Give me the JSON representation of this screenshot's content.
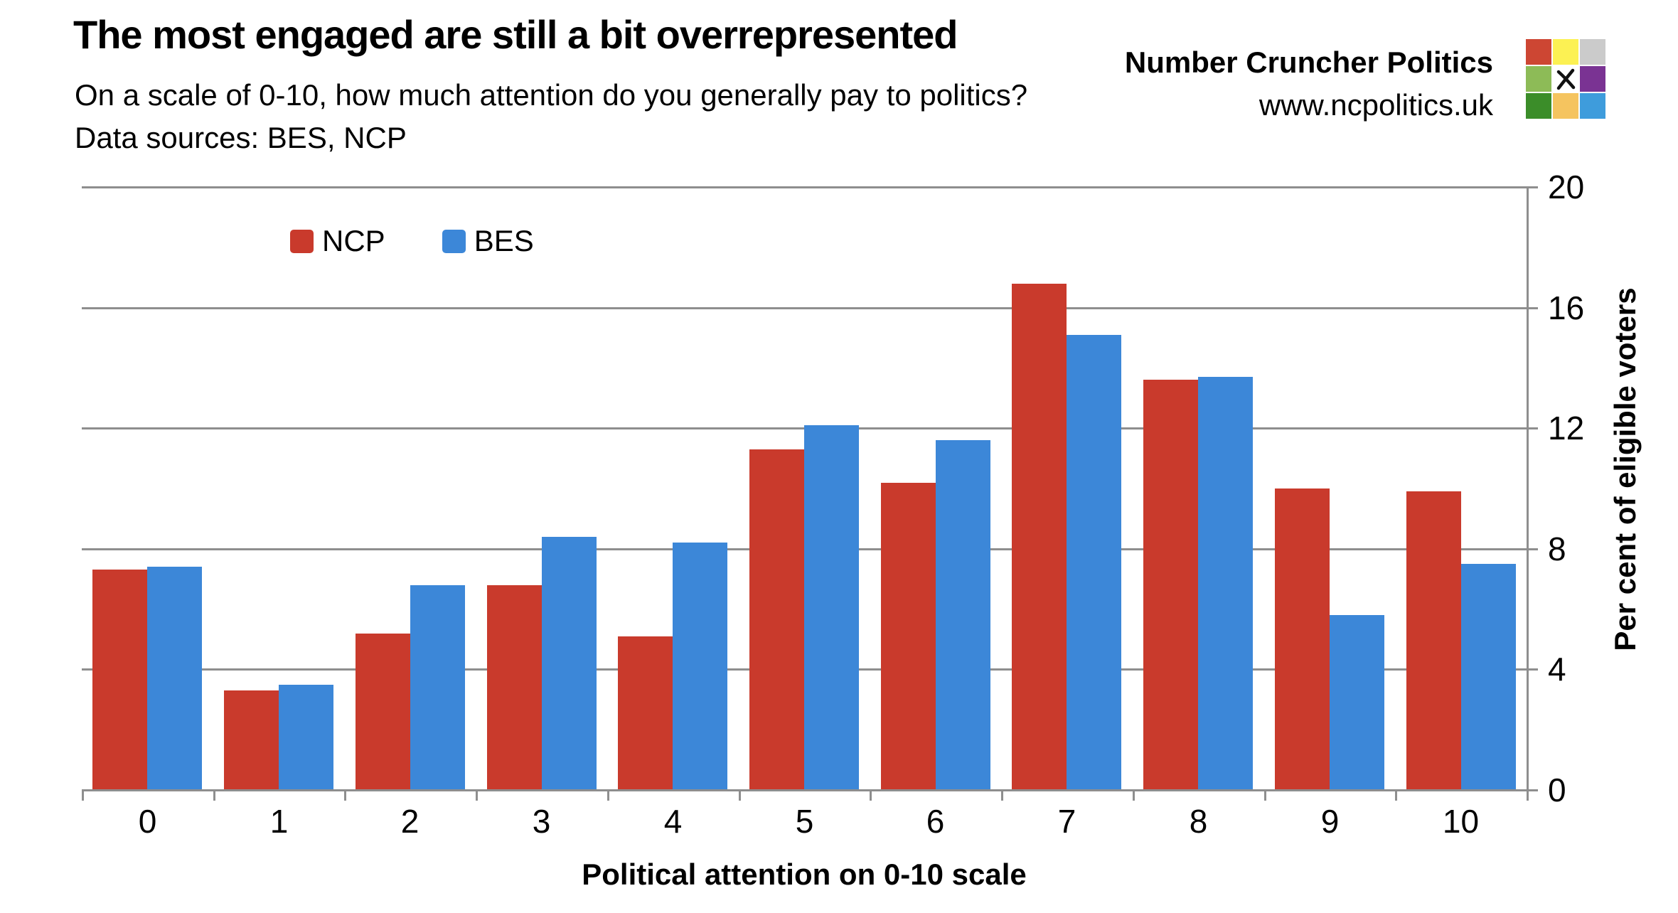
{
  "header": {
    "title": "The most engaged are still a bit overrepresented",
    "subtitle": "On a scale of 0-10, how much attention do you generally pay to politics?",
    "sources": "Data sources: BES, NCP",
    "brand_name": "Number Cruncher Politics",
    "brand_url": "www.ncpolitics.uk"
  },
  "logo": {
    "cells": [
      "#CD4633",
      "#FCF153",
      "#CBCBCB",
      "#8DBB57",
      "x-mark",
      "#7A3393",
      "#3B8D29",
      "#F5C45F",
      "#3E9CDC"
    ],
    "x_mark_color": "#111111"
  },
  "chart_data": {
    "type": "bar",
    "categories": [
      "0",
      "1",
      "2",
      "3",
      "4",
      "5",
      "6",
      "7",
      "8",
      "9",
      "10"
    ],
    "series": [
      {
        "name": "NCP",
        "color": "#C93A2C",
        "values": [
          7.3,
          3.3,
          5.2,
          6.8,
          5.1,
          11.3,
          10.2,
          16.8,
          13.6,
          10.0,
          9.9
        ]
      },
      {
        "name": "BES",
        "color": "#3C87D8",
        "values": [
          7.4,
          3.5,
          6.8,
          8.4,
          8.2,
          12.1,
          11.6,
          15.1,
          13.7,
          5.8,
          7.5
        ]
      }
    ],
    "title": "The most engaged are still a bit overrepresented",
    "xlabel": "Political attention on 0-10 scale",
    "ylabel": "Per cent of eligible voters",
    "ylim": [
      0,
      20
    ],
    "yticks": [
      0,
      4,
      8,
      12,
      16,
      20
    ],
    "grid": true,
    "grid_color": "#8e8e8e",
    "legend_position": "top-left-inside",
    "y_axis_side": "right"
  }
}
